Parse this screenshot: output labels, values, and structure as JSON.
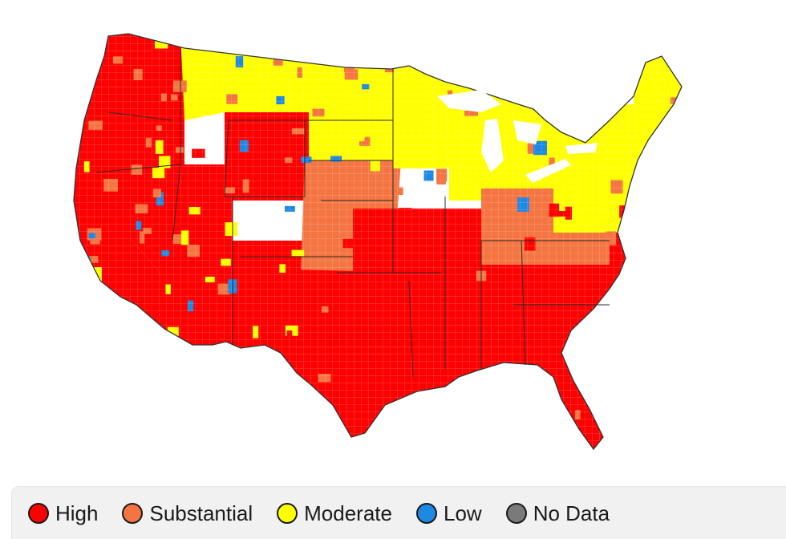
{
  "legend": {
    "items": [
      {
        "key": "high",
        "label": "High",
        "color": "#ff0000"
      },
      {
        "key": "substantial",
        "label": "Substantial",
        "color": "#f47542"
      },
      {
        "key": "moderate",
        "label": "Moderate",
        "color": "#ffff00"
      },
      {
        "key": "low",
        "label": "Low",
        "color": "#1e88e5"
      },
      {
        "key": "no_data",
        "label": "No Data",
        "color": "#7a7a7a"
      }
    ]
  },
  "map": {
    "regions": [
      {
        "name": "pacific-northwest",
        "level": "high"
      },
      {
        "name": "california",
        "level": "high"
      },
      {
        "name": "great-basin",
        "level": "high"
      },
      {
        "name": "wyoming",
        "level": "high"
      },
      {
        "name": "arizona-new-mexico",
        "level": "high"
      },
      {
        "name": "northern-rockies",
        "level": "moderate"
      },
      {
        "name": "northern-plains",
        "level": "moderate"
      },
      {
        "name": "central-plains",
        "level": "substantial"
      },
      {
        "name": "texas",
        "level": "high"
      },
      {
        "name": "south-central",
        "level": "high"
      },
      {
        "name": "southeast",
        "level": "high"
      },
      {
        "name": "florida",
        "level": "high"
      },
      {
        "name": "upper-midwest",
        "level": "moderate"
      },
      {
        "name": "great-lakes",
        "level": "moderate"
      },
      {
        "name": "ohio-valley",
        "level": "substantial"
      },
      {
        "name": "northeast",
        "level": "moderate"
      },
      {
        "name": "maine",
        "level": "moderate"
      }
    ]
  }
}
